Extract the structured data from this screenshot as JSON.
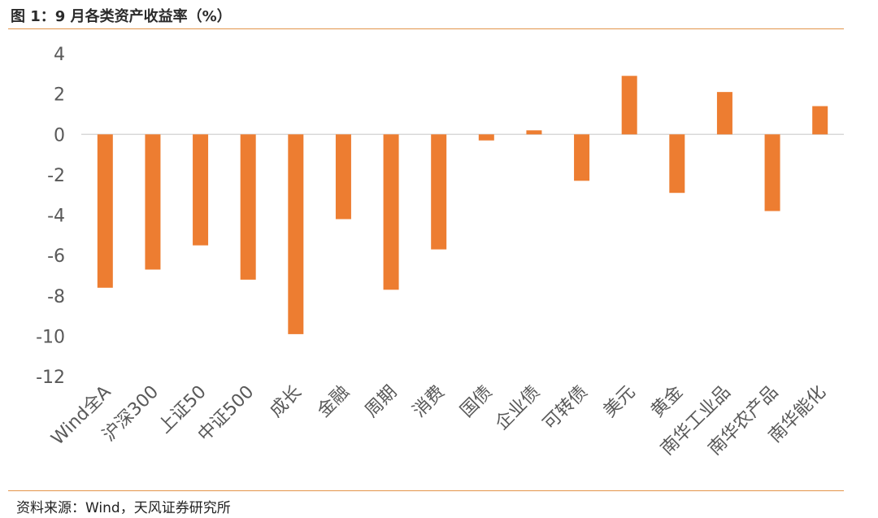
{
  "header": {
    "title": "图 1：9 月各类资产收益率（%）"
  },
  "footer": {
    "source": "资料来源：Wind，天风证券研究所"
  },
  "colors": {
    "bar": "#ed7d31",
    "axis": "#d9d9d9",
    "rule": "#e3944a"
  },
  "chart_data": {
    "type": "bar",
    "title": "9 月各类资产收益率（%）",
    "categories": [
      "Wind全A",
      "沪深300",
      "上证50",
      "中证500",
      "成长",
      "金融",
      "周期",
      "消费",
      "国债",
      "企业债",
      "可转债",
      "美元",
      "黄金",
      "南华工业品",
      "南华农产品",
      "南华能化"
    ],
    "values": [
      -7.6,
      -6.7,
      -5.5,
      -7.2,
      -9.9,
      -4.2,
      -7.7,
      -5.7,
      -0.3,
      0.2,
      -2.3,
      2.9,
      -2.9,
      2.1,
      -3.8,
      1.4
    ],
    "ylim": [
      -12,
      4
    ],
    "yticks": [
      "4",
      "2",
      "0",
      "-2",
      "-4",
      "-6",
      "-8",
      "-10",
      "-12"
    ],
    "ytick_values": [
      4,
      2,
      0,
      -2,
      -4,
      -6,
      -8,
      -10,
      -12
    ],
    "xlabel": "",
    "ylabel": "",
    "grid": false,
    "legend": "none"
  }
}
